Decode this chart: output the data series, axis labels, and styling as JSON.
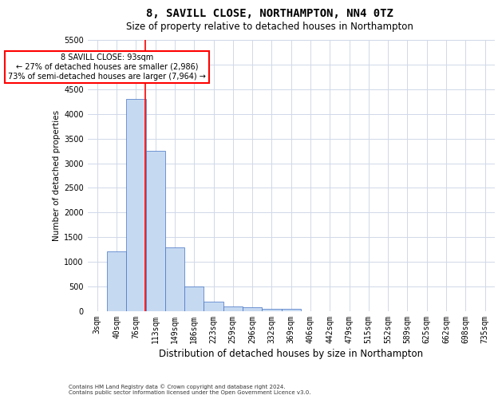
{
  "title1": "8, SAVILL CLOSE, NORTHAMPTON, NN4 0TZ",
  "title2": "Size of property relative to detached houses in Northampton",
  "xlabel": "Distribution of detached houses by size in Northampton",
  "ylabel": "Number of detached properties",
  "footnote1": "Contains HM Land Registry data © Crown copyright and database right 2024.",
  "footnote2": "Contains public sector information licensed under the Open Government Licence v3.0.",
  "categories": [
    "3sqm",
    "40sqm",
    "76sqm",
    "113sqm",
    "149sqm",
    "186sqm",
    "223sqm",
    "259sqm",
    "296sqm",
    "332sqm",
    "369sqm",
    "406sqm",
    "442sqm",
    "479sqm",
    "515sqm",
    "552sqm",
    "589sqm",
    "625sqm",
    "662sqm",
    "698sqm",
    "735sqm"
  ],
  "values": [
    0,
    1220,
    4300,
    3250,
    1300,
    500,
    200,
    100,
    75,
    50,
    50,
    0,
    0,
    0,
    0,
    0,
    0,
    0,
    0,
    0,
    0
  ],
  "bar_color": "#c5d9f1",
  "bar_edgecolor": "#4472c4",
  "grid_color": "#d0d8e8",
  "annotation_text": "8 SAVILL CLOSE: 93sqm\n← 27% of detached houses are smaller (2,986)\n73% of semi-detached houses are larger (7,964) →",
  "annotation_box_color": "white",
  "annotation_box_edgecolor": "red",
  "ylim": [
    0,
    5500
  ],
  "yticks": [
    0,
    500,
    1000,
    1500,
    2000,
    2500,
    3000,
    3500,
    4000,
    4500,
    5000,
    5500
  ],
  "bg_color": "white",
  "title1_fontsize": 10,
  "title2_fontsize": 8.5,
  "xlabel_fontsize": 8.5,
  "ylabel_fontsize": 7.5,
  "tick_fontsize": 7,
  "footnote_fontsize": 5
}
